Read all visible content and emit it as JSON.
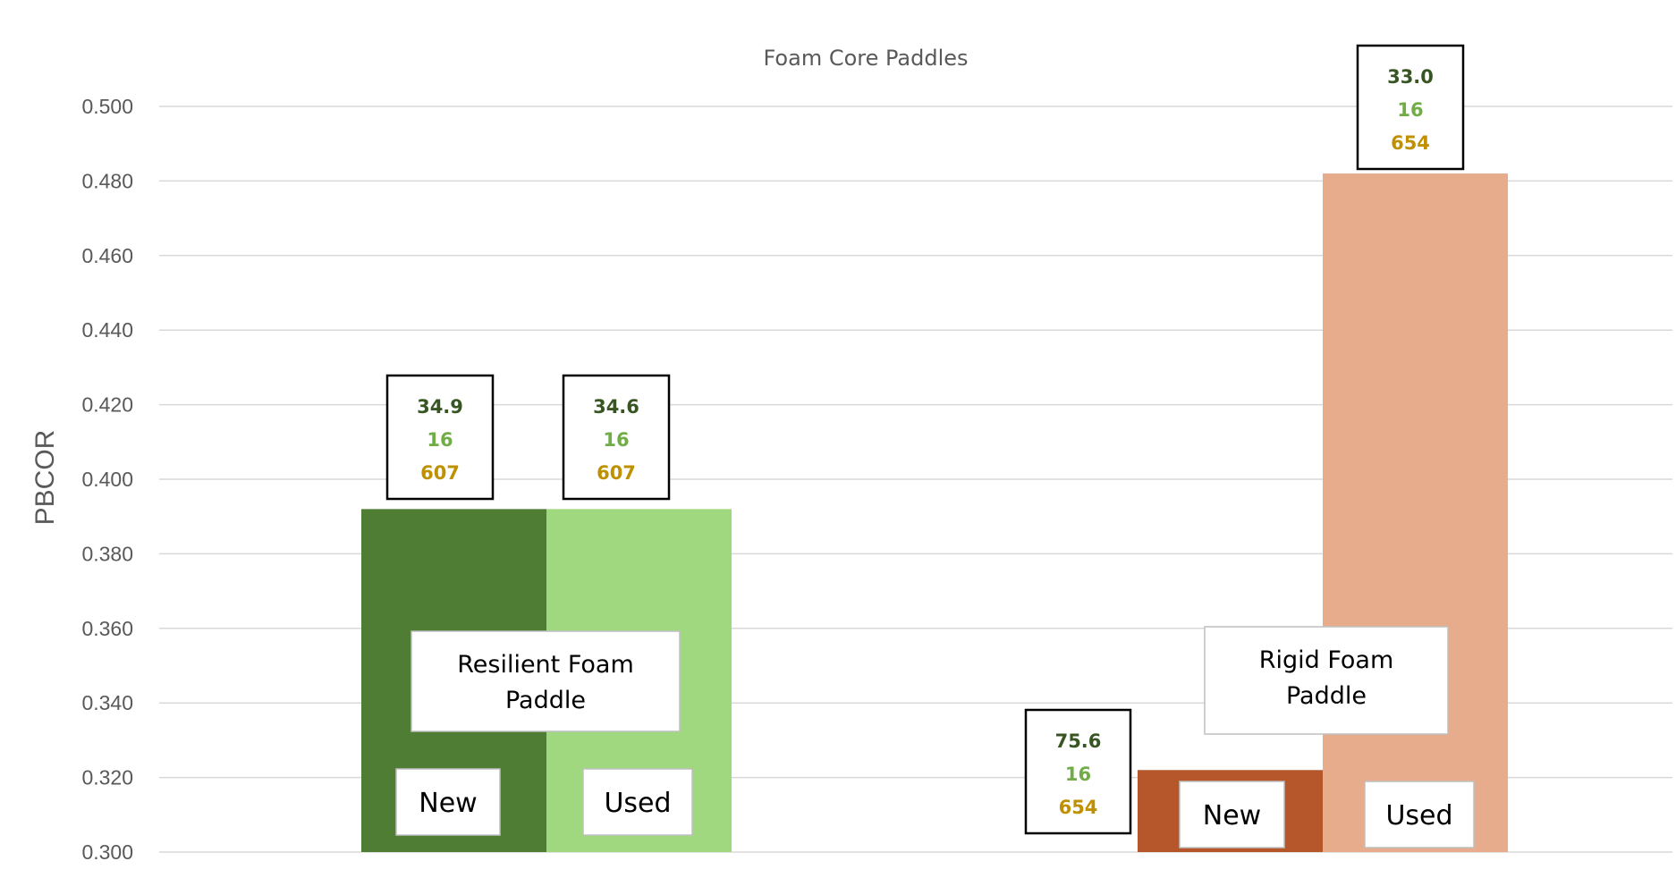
{
  "chart_data": {
    "type": "bar",
    "title": "Foam Core Paddles",
    "ylabel": "PBCOR",
    "xlabel": "",
    "ylim": [
      0.3,
      0.5
    ],
    "yticks": [
      "0.300",
      "0.320",
      "0.340",
      "0.360",
      "0.380",
      "0.400",
      "0.420",
      "0.440",
      "0.460",
      "0.480",
      "0.500"
    ],
    "grid": true,
    "groups": [
      {
        "label": "Resilient Foam Paddle",
        "label_lines": [
          "Resilient Foam",
          "Paddle"
        ],
        "bars": [
          {
            "label": "New",
            "value": 0.392,
            "color": "#4E7D33",
            "annotation": [
              "34.9",
              "16",
              "607"
            ]
          },
          {
            "label": "Used",
            "value": 0.392,
            "color": "#A0D87F",
            "annotation": [
              "34.6",
              "16",
              "607"
            ]
          }
        ]
      },
      {
        "label": "Rigid Foam Paddle",
        "label_lines": [
          "Rigid Foam",
          "Paddle"
        ],
        "bars": [
          {
            "label": "New",
            "value": 0.322,
            "color": "#B5572A",
            "annotation": [
              "75.6",
              "16",
              "654"
            ]
          },
          {
            "label": "Used",
            "value": 0.482,
            "color": "#E6AC8B",
            "annotation": [
              "33.0",
              "16",
              "654"
            ]
          }
        ]
      }
    ],
    "annotation_colors": [
      "#375623",
      "#70AD47",
      "#BF9000"
    ],
    "gridline_color": "#D9D9D9"
  }
}
